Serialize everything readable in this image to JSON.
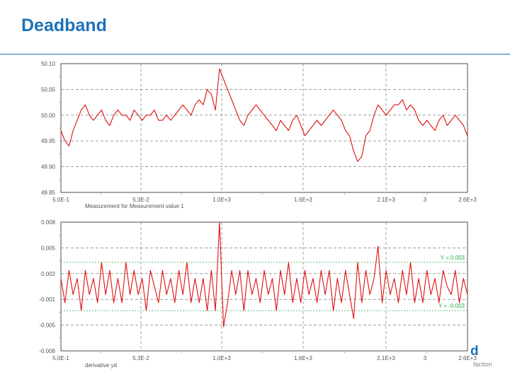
{
  "slide": {
    "title": "Deadband"
  },
  "logo": {
    "mark": "d",
    "sub": "faction"
  },
  "chart_data": [
    {
      "type": "line",
      "title": "",
      "xlabel": "Measurement for Measurement value 1",
      "ylabel": "",
      "xticks": [
        "5.0E-1",
        "5.3E-2",
        "1.0E+3",
        "1.6E+3",
        "2.1E+3",
        "2.6E+3"
      ],
      "extra_xtick": "3",
      "yticks": [
        "50.10",
        "50.05",
        "50.00",
        "49.95",
        "49.90",
        "49.85"
      ],
      "ylim": [
        49.85,
        50.1
      ],
      "grid": true,
      "series": [
        {
          "color": "#dd1111",
          "x": [
            0,
            1,
            2,
            3,
            4,
            5,
            6,
            7,
            8,
            9,
            10,
            11,
            12,
            13,
            14,
            15,
            16,
            17,
            18,
            19,
            20,
            21,
            22,
            23,
            24,
            25,
            26,
            27,
            28,
            29,
            30,
            31,
            32,
            33,
            34,
            35,
            36,
            37,
            38,
            39,
            40,
            41,
            42,
            43,
            44,
            45,
            46,
            47,
            48,
            49,
            50,
            51,
            52,
            53,
            54,
            55,
            56,
            57,
            58,
            59,
            60,
            61,
            62,
            63,
            64,
            65,
            66,
            67,
            68,
            69,
            70,
            71,
            72,
            73,
            74,
            75,
            76,
            77,
            78,
            79,
            80,
            81,
            82,
            83,
            84,
            85,
            86,
            87,
            88,
            89,
            90,
            91,
            92,
            93,
            94,
            95,
            96,
            97,
            98,
            99,
            100
          ],
          "values": [
            49.97,
            49.95,
            49.94,
            49.97,
            49.99,
            50.01,
            50.02,
            50.0,
            49.99,
            50.0,
            50.01,
            49.99,
            49.98,
            50.0,
            50.01,
            50.0,
            50.0,
            49.99,
            50.01,
            50.0,
            49.99,
            50.0,
            50.0,
            50.01,
            49.99,
            49.99,
            50.0,
            49.99,
            50.0,
            50.01,
            50.02,
            50.01,
            50.0,
            50.02,
            50.03,
            50.02,
            50.05,
            50.04,
            50.01,
            50.09,
            50.07,
            50.05,
            50.03,
            50.01,
            49.99,
            49.98,
            50.0,
            50.01,
            50.02,
            50.01,
            50.0,
            49.99,
            49.98,
            49.97,
            49.99,
            49.98,
            49.97,
            49.99,
            50.0,
            49.98,
            49.96,
            49.97,
            49.98,
            49.99,
            49.98,
            49.99,
            50.0,
            50.01,
            50.0,
            49.99,
            49.97,
            49.96,
            49.93,
            49.91,
            49.92,
            49.96,
            49.97,
            50.0,
            50.02,
            50.01,
            50.0,
            50.01,
            50.02,
            50.02,
            50.03,
            50.01,
            50.02,
            50.01,
            49.99,
            49.98,
            49.99,
            49.98,
            49.97,
            49.99,
            50.0,
            49.98,
            49.99,
            50.0,
            49.99,
            49.98,
            49.96
          ]
        }
      ]
    },
    {
      "type": "line",
      "title": "",
      "xlabel": "derivative yd",
      "ylabel": "",
      "xticks": [
        "5.0E-1",
        "5.3E-2",
        "1.0E+3",
        "1.6E+3",
        "2.1E+3",
        "2.6E+3"
      ],
      "extra_xtick": "3",
      "yticks": [
        "0.008",
        "0.005",
        "0.002",
        "-0.001",
        "-0.005",
        "-0.008"
      ],
      "ylim": [
        -0.008,
        0.008
      ],
      "grid": true,
      "thresholds": [
        {
          "value": 0.003,
          "label": "Y = 0.003",
          "color": "#2fa84f"
        },
        {
          "value": -0.003,
          "label": "Y = -0.003",
          "color": "#2fa84f"
        }
      ],
      "series": [
        {
          "color": "#dd1111",
          "x": [
            0,
            1,
            2,
            3,
            4,
            5,
            6,
            7,
            8,
            9,
            10,
            11,
            12,
            13,
            14,
            15,
            16,
            17,
            18,
            19,
            20,
            21,
            22,
            23,
            24,
            25,
            26,
            27,
            28,
            29,
            30,
            31,
            32,
            33,
            34,
            35,
            36,
            37,
            38,
            39,
            40,
            41,
            42,
            43,
            44,
            45,
            46,
            47,
            48,
            49,
            50,
            51,
            52,
            53,
            54,
            55,
            56,
            57,
            58,
            59,
            60,
            61,
            62,
            63,
            64,
            65,
            66,
            67,
            68,
            69,
            70,
            71,
            72,
            73,
            74,
            75,
            76,
            77,
            78,
            79,
            80,
            81,
            82,
            83,
            84,
            85,
            86,
            87,
            88,
            89,
            90,
            91,
            92,
            93,
            94,
            95,
            96,
            97,
            98,
            99,
            100
          ],
          "values": [
            0.001,
            -0.002,
            0.002,
            -0.001,
            0.001,
            -0.003,
            0.002,
            -0.001,
            0.001,
            -0.002,
            0.003,
            -0.001,
            0.002,
            -0.002,
            0.001,
            -0.002,
            0.003,
            -0.001,
            0.002,
            -0.001,
            0.001,
            -0.003,
            0.002,
            0.0,
            -0.002,
            0.002,
            -0.001,
            0.001,
            -0.002,
            0.002,
            -0.001,
            0.003,
            -0.002,
            0.001,
            -0.002,
            0.001,
            -0.003,
            0.002,
            -0.003,
            0.008,
            -0.005,
            -0.002,
            0.002,
            -0.001,
            0.002,
            -0.003,
            0.002,
            -0.001,
            0.001,
            -0.002,
            0.002,
            -0.001,
            0.001,
            -0.003,
            0.002,
            -0.001,
            0.003,
            -0.002,
            0.001,
            -0.002,
            0.002,
            -0.001,
            0.001,
            -0.002,
            0.002,
            -0.001,
            0.002,
            -0.003,
            0.001,
            -0.002,
            0.002,
            -0.001,
            -0.004,
            0.003,
            -0.002,
            0.002,
            -0.001,
            0.001,
            0.005,
            -0.002,
            0.002,
            -0.001,
            0.001,
            -0.002,
            0.002,
            -0.001,
            0.003,
            -0.002,
            0.001,
            -0.002,
            0.002,
            -0.001,
            0.001,
            -0.002,
            0.002,
            0.0,
            -0.001,
            0.002,
            -0.002,
            0.001,
            -0.001
          ]
        }
      ]
    }
  ]
}
